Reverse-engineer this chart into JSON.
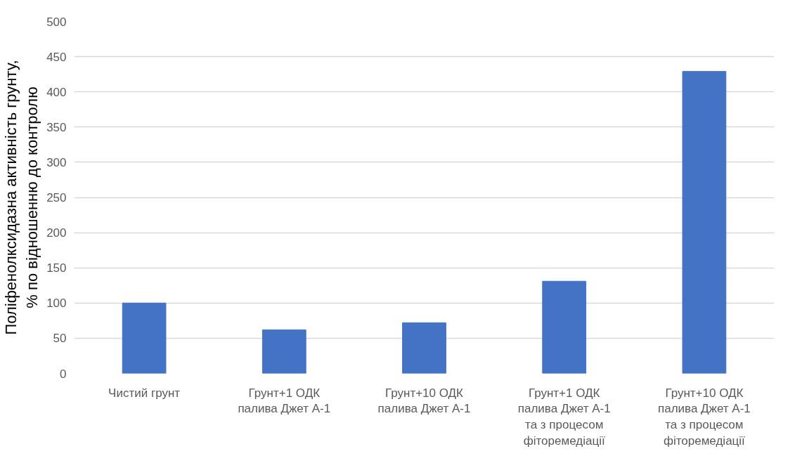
{
  "chart_data": {
    "type": "bar",
    "ylabel": "Поліфенолксидазна активність грунту, % по відношенню до контролю",
    "categories": [
      "Чистий грунт",
      "Грунт+1 ОДК палива Джет А-1",
      "Грунт+10 ОДК палива Джет А-1",
      "Грунт+1 ОДК палива Джет А-1 та з процесом фіторемедіації",
      "Грунт+10 ОДК палива Джет А-1 та з процесом фіторемедіації"
    ],
    "values": [
      100,
      62,
      72,
      131,
      429
    ],
    "color": "#4472c4",
    "ylim": [
      0,
      500
    ],
    "yticks": [
      0,
      50,
      100,
      150,
      200,
      250,
      300,
      350,
      400,
      450,
      500
    ],
    "grid": "y"
  }
}
